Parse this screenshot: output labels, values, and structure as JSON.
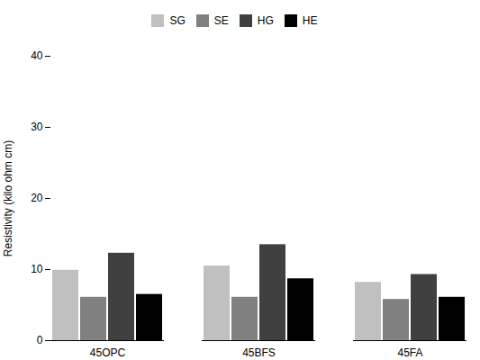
{
  "chart_data": {
    "type": "bar",
    "categories": [
      "45OPC",
      "45BFS",
      "45FA"
    ],
    "series": [
      {
        "name": "SG",
        "color": "#c0c0c0",
        "values": [
          9.9,
          10.5,
          8.2
        ]
      },
      {
        "name": "SE",
        "color": "#808080",
        "values": [
          6.1,
          6.1,
          5.8
        ]
      },
      {
        "name": "HG",
        "color": "#404040",
        "values": [
          12.3,
          13.5,
          9.3
        ]
      },
      {
        "name": "HE",
        "color": "#000000",
        "values": [
          6.5,
          8.7,
          6.1
        ]
      }
    ],
    "ylabel": "Resistivity (kilo ohm cm)",
    "ylim": [
      0,
      40
    ],
    "yticks": [
      0,
      10,
      20,
      30,
      40
    ],
    "grid": false,
    "legend": "top"
  }
}
